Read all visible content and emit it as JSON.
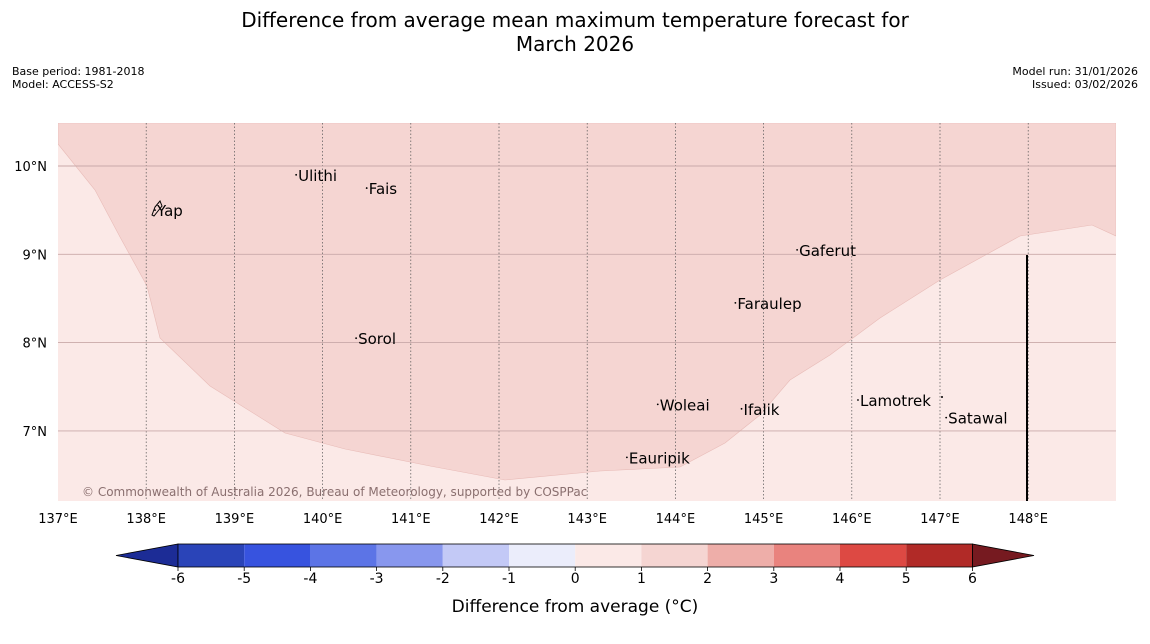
{
  "header": {
    "title_line1": "Difference from average mean maximum temperature forecast for",
    "title_line2": "March 2026",
    "base_period": "Base period: 1981-2018",
    "model": "Model: ACCESS-S2",
    "model_run": "Model run: 31/01/2026",
    "issued": "Issued: 03/02/2026"
  },
  "map": {
    "lon_labels": [
      "137°E",
      "138°E",
      "139°E",
      "140°E",
      "141°E",
      "142°E",
      "143°E",
      "144°E",
      "145°E",
      "146°E",
      "147°E",
      "148°E"
    ],
    "lat_labels": [
      "10°N",
      "9°N",
      "8°N",
      "7°N"
    ],
    "places": [
      {
        "name": "Yap",
        "lon": 138.1,
        "lat": 9.5
      },
      {
        "name": "Ulithi",
        "lon": 139.7,
        "lat": 9.9
      },
      {
        "name": "Fais",
        "lon": 140.5,
        "lat": 9.75
      },
      {
        "name": "Gaferut",
        "lon": 145.38,
        "lat": 9.05
      },
      {
        "name": "Faraulep",
        "lon": 144.68,
        "lat": 8.45
      },
      {
        "name": "Sorol",
        "lon": 140.38,
        "lat": 8.05
      },
      {
        "name": "Lamotrek",
        "lon": 146.07,
        "lat": 7.35
      },
      {
        "name": "Woleai",
        "lon": 143.8,
        "lat": 7.3
      },
      {
        "name": "Ifalik",
        "lon": 144.75,
        "lat": 7.25
      },
      {
        "name": "Satawal",
        "lon": 147.07,
        "lat": 7.15
      },
      {
        "name": "Eauripik",
        "lon": 143.45,
        "lat": 6.7
      }
    ],
    "copyright": "© Commonwealth of Australia 2026, Bureau of Meteorology, supported by COSPPac",
    "colors": {
      "anomaly_0_1": "#fbe9e7",
      "anomaly_1_2": "#f5d5d2",
      "grid": "#c9a9a9"
    }
  },
  "legend": {
    "ticks": [
      "-6",
      "-5",
      "-4",
      "-3",
      "-2",
      "-1",
      "0",
      "1",
      "2",
      "3",
      "4",
      "5",
      "6"
    ],
    "colors": [
      "#761a20",
      "#1c2c96",
      "#2a44b8",
      "#3753df",
      "#5c74e6",
      "#8897ee",
      "#c3c9f6",
      "#ebedfb",
      "#fbe9e7",
      "#f5d5d2",
      "#eeaea9",
      "#e9837e",
      "#dd4943",
      "#b12a27",
      "#761a20"
    ],
    "label": "Difference from average (°C)"
  }
}
